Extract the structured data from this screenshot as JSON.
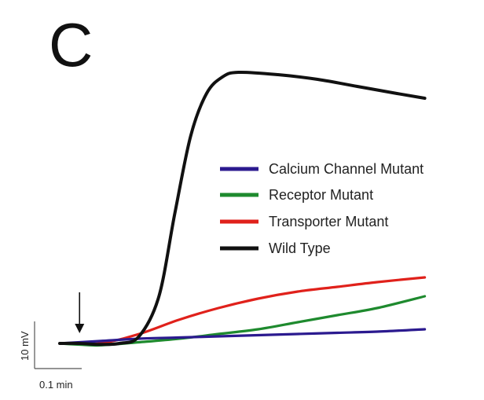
{
  "chart_data": {
    "type": "line",
    "panel_label": "C",
    "legend": {
      "placement": "right",
      "entries": [
        {
          "name": "Calcium Channel Mutant",
          "color": "#2b1a8f"
        },
        {
          "name": "Receptor Mutant",
          "color": "#1e8a2e"
        },
        {
          "name": "Transporter Mutant",
          "color": "#e0211b"
        },
        {
          "name": "Wild Type",
          "color": "#111111"
        }
      ]
    },
    "scale_bar": {
      "y_label": "10 mV",
      "x_label": "0.1 min",
      "y_value_mV": 10,
      "x_value_min": 0.1
    },
    "stimulus_marker_time_min": 0.05,
    "series": [
      {
        "name": "Wild Type",
        "color": "#111111",
        "points": [
          [
            0,
            0
          ],
          [
            0.05,
            0
          ],
          [
            0.1,
            -0.4
          ],
          [
            0.15,
            0
          ],
          [
            0.2,
            3
          ],
          [
            0.25,
            20
          ],
          [
            0.29,
            55
          ],
          [
            0.33,
            88
          ],
          [
            0.37,
            106
          ],
          [
            0.41,
            113
          ],
          [
            0.45,
            115
          ],
          [
            0.55,
            114
          ],
          [
            0.65,
            112
          ],
          [
            0.75,
            109
          ],
          [
            0.85,
            106
          ],
          [
            0.92,
            104
          ]
        ]
      },
      {
        "name": "Transporter Mutant",
        "color": "#e0211b",
        "points": [
          [
            0,
            0
          ],
          [
            0.1,
            0
          ],
          [
            0.2,
            4
          ],
          [
            0.3,
            10
          ],
          [
            0.4,
            15
          ],
          [
            0.5,
            19
          ],
          [
            0.6,
            22
          ],
          [
            0.7,
            24
          ],
          [
            0.8,
            26
          ],
          [
            0.92,
            28
          ]
        ]
      },
      {
        "name": "Receptor Mutant",
        "color": "#1e8a2e",
        "points": [
          [
            0,
            0
          ],
          [
            0.05,
            -0.5
          ],
          [
            0.1,
            -0.8
          ],
          [
            0.2,
            0.5
          ],
          [
            0.3,
            2
          ],
          [
            0.4,
            4
          ],
          [
            0.5,
            6
          ],
          [
            0.6,
            9
          ],
          [
            0.7,
            12
          ],
          [
            0.8,
            15
          ],
          [
            0.92,
            20
          ]
        ]
      },
      {
        "name": "Calcium Channel Mutant",
        "color": "#2b1a8f",
        "points": [
          [
            0,
            0
          ],
          [
            0.1,
            1
          ],
          [
            0.2,
            2
          ],
          [
            0.3,
            2.5
          ],
          [
            0.4,
            3
          ],
          [
            0.5,
            3.5
          ],
          [
            0.6,
            4
          ],
          [
            0.7,
            4.5
          ],
          [
            0.8,
            5
          ],
          [
            0.92,
            6
          ]
        ]
      }
    ]
  }
}
